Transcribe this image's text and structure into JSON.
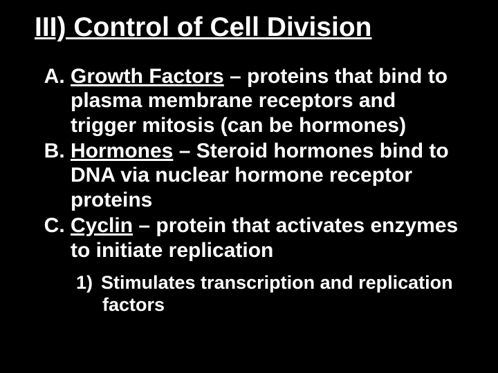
{
  "background_color": "#000000",
  "text_color": "#ffffff",
  "font_family": "Arial, Helvetica, sans-serif",
  "title": {
    "text": "III) Control of Cell Division",
    "fontsize": 39,
    "font_weight": "bold",
    "underline": true
  },
  "list_fontsize": 30,
  "sublist_fontsize": 27,
  "items": {
    "a": {
      "term": "Growth Factors",
      "rest": " – proteins that bind to plasma membrane receptors and trigger mitosis (can be hormones)"
    },
    "b": {
      "term": "Hormones",
      "rest": " – Steroid hormones bind to DNA via nuclear hormone receptor proteins"
    },
    "c": {
      "term": "Cyclin",
      "rest": " – protein that activates enzymes to initiate replication"
    }
  },
  "subitems": {
    "c1": {
      "num": "1",
      "text": "Stimulates transcription and replication factors"
    }
  }
}
